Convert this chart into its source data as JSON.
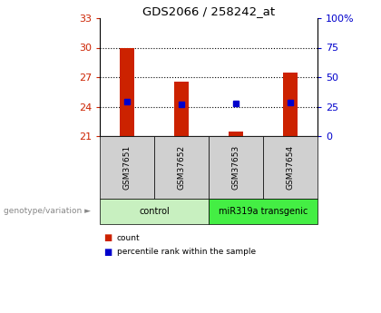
{
  "title": "GDS2066 / 258242_at",
  "samples": [
    "GSM37651",
    "GSM37652",
    "GSM37653",
    "GSM37654"
  ],
  "count_values": [
    30.0,
    26.5,
    21.5,
    27.5
  ],
  "percentile_values": [
    24.5,
    24.2,
    24.3,
    24.4
  ],
  "groups": [
    {
      "label": "control",
      "samples": [
        0,
        1
      ],
      "color": "#c8f0c0"
    },
    {
      "label": "miR319a transgenic",
      "samples": [
        2,
        3
      ],
      "color": "#44ee44"
    }
  ],
  "ylim_left": [
    21,
    33
  ],
  "ylim_right": [
    0,
    100
  ],
  "yticks_left": [
    21,
    24,
    27,
    30,
    33
  ],
  "yticks_right": [
    0,
    25,
    50,
    75,
    100
  ],
  "ytick_labels_right": [
    "0",
    "25",
    "50",
    "75",
    "100%"
  ],
  "bar_color": "#cc2200",
  "marker_color": "#0000cc",
  "bar_width": 0.28,
  "left_tick_color": "#cc2200",
  "right_tick_color": "#0000cc",
  "bg_color": "#ffffff",
  "cell_bg_color": "#d0d0d0",
  "legend_count_label": "count",
  "legend_pct_label": "percentile rank within the sample",
  "genotype_label": "genotype/variation",
  "gridlines": [
    24,
    27,
    30
  ]
}
